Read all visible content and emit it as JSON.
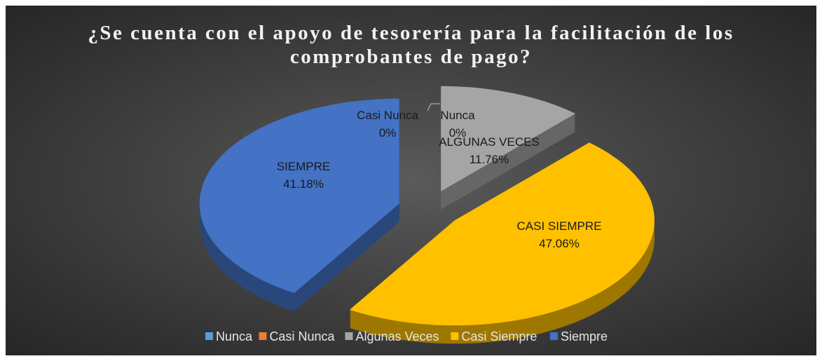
{
  "chart_data": {
    "type": "pie3d",
    "title": "¿Se cuenta con el apoyo de tesorería para la facilitación de los comprobantes de pago?",
    "categories": [
      "Nunca",
      "Casi Nunca",
      "Algunas Veces",
      "Casi Siempre",
      "Siempre"
    ],
    "values": [
      0,
      0,
      11.76,
      47.06,
      41.18
    ],
    "value_labels": [
      "0%",
      "0%",
      "11.76%",
      "47.06%",
      "41.18%"
    ],
    "label_names": [
      "Nunca",
      "Casi Nunca",
      "ALGUNAS VECES",
      "CASI SIEMPRE",
      "SIEMPRE"
    ],
    "colors": [
      "#5b9bd5",
      "#ed7d31",
      "#a5a5a5",
      "#ffc000",
      "#4472c4"
    ],
    "legend": "bottom"
  }
}
